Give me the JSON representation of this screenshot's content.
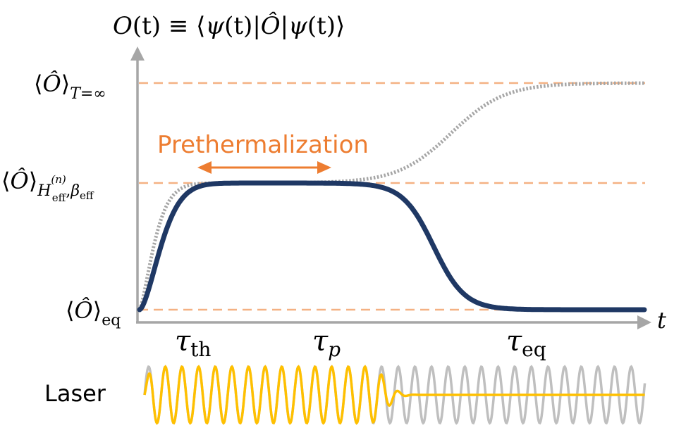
{
  "title": {
    "O": "O",
    "t_arg": "(t)",
    "equiv": " ≡ ⟨",
    "psi1": "ψ",
    "psi1_arg": "(t)",
    "bar1": "|",
    "Ohat": "Ô",
    "bar2": "|",
    "psi2": "ψ",
    "psi2_arg": "(t)",
    "close": "⟩"
  },
  "levels": {
    "infinite": {
      "bracket_open": "⟨",
      "op": "Ô",
      "bracket_close": "⟩",
      "sub_T": "T",
      "sub_rest": "=∞"
    },
    "effective": {
      "bracket_open": "⟨",
      "op": "Ô",
      "bracket_close": "⟩",
      "sub_H": "H",
      "sub_eff": "eff",
      "sup_n": "(n)",
      "sub_comma": ",",
      "sub_beta": "β",
      "sub_beta_eff": "eff"
    },
    "equilibrium": {
      "bracket_open": "⟨",
      "op": "Ô",
      "bracket_close": "⟩",
      "sub": "eq"
    }
  },
  "axis": {
    "x_label": "t"
  },
  "annotation": {
    "prethermalization": "Prethermalization"
  },
  "timescales": {
    "tau_th": {
      "tau": "τ",
      "sub": "th"
    },
    "tau_p": {
      "tau": "τ",
      "sub": "p"
    },
    "tau_eq": {
      "tau": "τ",
      "sub": "eq"
    }
  },
  "laser": {
    "label": "Laser"
  },
  "colors": {
    "dashed": "#f4b183",
    "main_curve": "#1f3864",
    "gray_curve": "#a6a6a6",
    "axis": "#a6a6a6",
    "annotation": "#ed7d31",
    "laser_drive": "#ffc000",
    "laser_reference": "#bfbfbf"
  }
}
